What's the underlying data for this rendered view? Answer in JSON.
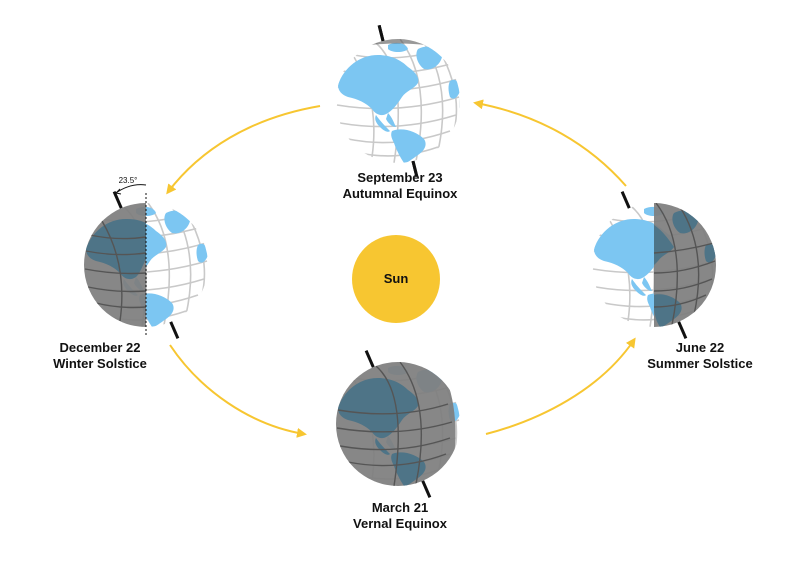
{
  "sun": {
    "label": "Sun",
    "color": "#F7C631"
  },
  "colors": {
    "arrow": "#F7C631",
    "ocean_lit": "#FFFFFF",
    "ocean_dark": "#7E7E7E",
    "land_lit": "#7CC6F2",
    "land_dark": "#4E7487",
    "grid_lit": "#C9C9C9",
    "grid_dark": "#555555",
    "axis": "#111111"
  },
  "tilt": {
    "angle_label": "23.5°"
  },
  "positions": [
    {
      "id": "september",
      "date": "September 23",
      "name": "Autumnal Equinox"
    },
    {
      "id": "december",
      "date": "December 22",
      "name": "Winter Solstice"
    },
    {
      "id": "june",
      "date": "June 22",
      "name": "Summer Solstice"
    },
    {
      "id": "march",
      "date": "March 21",
      "name": "Vernal Equinox"
    }
  ]
}
